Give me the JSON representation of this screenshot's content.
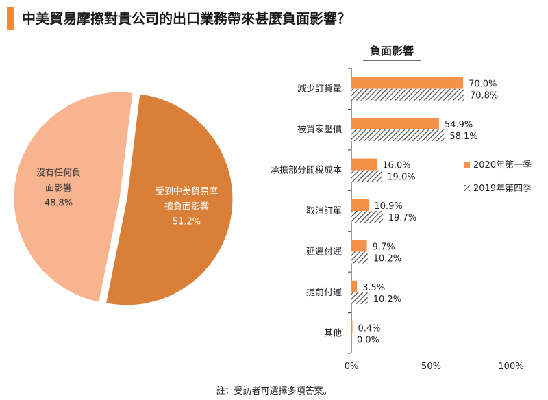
{
  "title": "中美貿易摩擦對貴公司的出口業務帶來甚麼負面影響？",
  "footnote": "註：受訪者可選擇多項答案。",
  "colors": {
    "accent": "#f08a3b",
    "pie_light": "#f7b48f",
    "pie_dark": "#d97f38",
    "bar_2020": "#f6914a",
    "hatch": "#555555"
  },
  "chart_data": [
    {
      "type": "pie",
      "slices": [
        {
          "label_lines": [
            "沒有任何負",
            "面影響"
          ],
          "percent_label": "48.8%",
          "value": 48.8
        },
        {
          "label_lines": [
            "受到中美貿易摩",
            "擦負面影響"
          ],
          "percent_label": "51.2%",
          "value": 51.2
        }
      ]
    },
    {
      "type": "bar",
      "orientation": "horizontal",
      "title": "負面影響",
      "categories": [
        "減少訂貨量",
        "被買家壓價",
        "承擔部分關稅成本",
        "取消訂單",
        "延遲付運",
        "提前付運",
        "其他"
      ],
      "series": [
        {
          "name": "2020年第一季",
          "values": [
            70.0,
            54.9,
            16.0,
            10.9,
            9.7,
            3.5,
            0.4
          ],
          "labels": [
            "70.0%",
            "54.9%",
            "16.0%",
            "10.9%",
            "9.7%",
            "3.5%",
            "0.4%"
          ]
        },
        {
          "name": "2019年第四季",
          "values": [
            70.8,
            58.1,
            19.0,
            19.7,
            10.2,
            10.2,
            0.0
          ],
          "labels": [
            "70.8%",
            "58.1%",
            "19.0%",
            "19.7%",
            "10.2%",
            "10.2%",
            "0.0%"
          ]
        }
      ],
      "xlim": [
        0,
        100
      ],
      "xticks": [
        "0%",
        "50%",
        "100%"
      ]
    }
  ]
}
